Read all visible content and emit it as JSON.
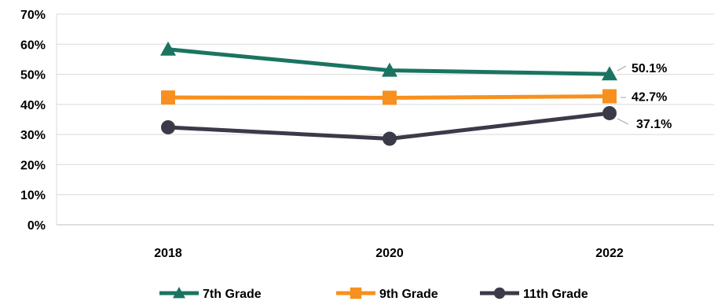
{
  "chart_data": {
    "type": "line",
    "title": "",
    "xlabel": "",
    "ylabel": "",
    "categories": [
      "2018",
      "2020",
      "2022"
    ],
    "ylim": [
      0,
      70
    ],
    "yticks": [
      "0%",
      "10%",
      "20%",
      "30%",
      "40%",
      "50%",
      "60%",
      "70%"
    ],
    "grid": true,
    "legend_position": "bottom",
    "series": [
      {
        "name": "7th Grade",
        "values": [
          58.3,
          51.3,
          50.1
        ],
        "color": "#1a7461",
        "marker": "triangle"
      },
      {
        "name": "9th Grade",
        "values": [
          42.3,
          42.2,
          42.7
        ],
        "color": "#f7901e",
        "marker": "square"
      },
      {
        "name": "11th Grade",
        "values": [
          32.4,
          28.6,
          37.1
        ],
        "color": "#3a3a48",
        "marker": "circle"
      }
    ],
    "data_labels": [
      {
        "series": 0,
        "index": 2,
        "text": "50.1%"
      },
      {
        "series": 1,
        "index": 2,
        "text": "42.7%"
      },
      {
        "series": 2,
        "index": 2,
        "text": "37.1%"
      }
    ]
  }
}
